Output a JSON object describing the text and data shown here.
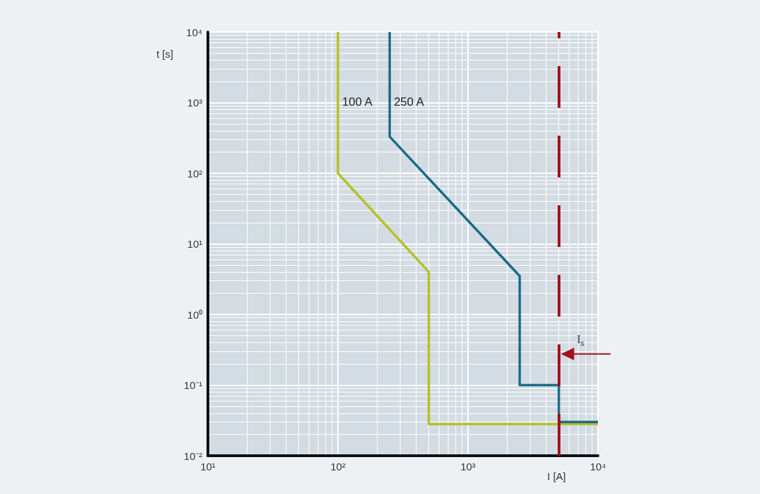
{
  "chart_data": {
    "type": "line",
    "xlabel": "I [A]",
    "ylabel": "t [s]",
    "log": "xy",
    "grid": true,
    "legend": false,
    "marker": "none",
    "xlim": [
      10,
      10000
    ],
    "ylim": [
      0.01,
      10000
    ],
    "xticks": [
      {
        "value": 10,
        "label": "10¹"
      },
      {
        "value": 100,
        "label": "10²"
      },
      {
        "value": 1000,
        "label": "10³"
      },
      {
        "value": 10000,
        "label": "10⁴"
      }
    ],
    "yticks": [
      {
        "value": 0.01,
        "label": "10⁻²"
      },
      {
        "value": 0.1,
        "label": "10⁻¹"
      },
      {
        "value": 1,
        "label": "10⁰"
      },
      {
        "value": 10,
        "label": "10¹"
      },
      {
        "value": 100,
        "label": "10²"
      },
      {
        "value": 1000,
        "label": "10³"
      },
      {
        "value": 10000,
        "label": "10⁴"
      }
    ],
    "series": [
      {
        "name": "100 A",
        "color": "#b4c125",
        "x": [
          100,
          100,
          500,
          500,
          10000
        ],
        "values": [
          10000,
          100,
          4,
          0.028,
          0.028
        ]
      },
      {
        "name": "250 A",
        "color": "#1b6a8a",
        "x": [
          250,
          250,
          2500,
          2500,
          5000,
          5000,
          10000
        ],
        "values": [
          10000,
          330,
          3.5,
          0.1,
          0.1,
          0.03,
          0.03
        ]
      }
    ],
    "ref_lines": [
      {
        "axis": "x",
        "value": 5000,
        "label": "I$_{s}$",
        "color": "#a3111c",
        "line_style": "dashed"
      }
    ]
  }
}
